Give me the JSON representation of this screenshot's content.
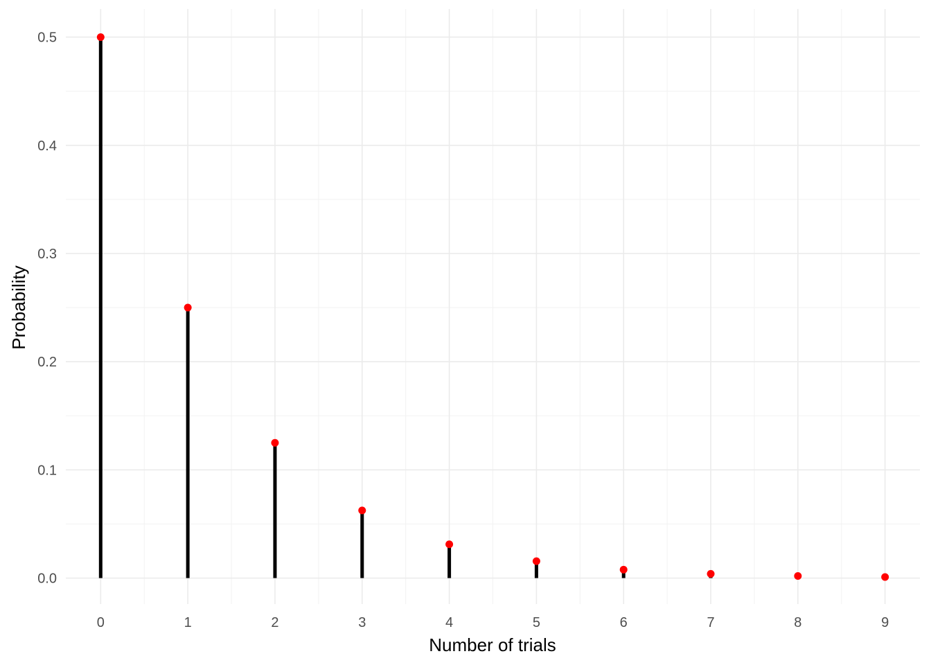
{
  "chart_data": {
    "type": "lollipop",
    "title": "",
    "xlabel": "Number of trials",
    "ylabel": "Probability",
    "x": [
      0,
      1,
      2,
      3,
      4,
      5,
      6,
      7,
      8,
      9
    ],
    "values": [
      0.5,
      0.25,
      0.125,
      0.0625,
      0.03125,
      0.015625,
      0.0078125,
      0.00390625,
      0.001953125,
      0.0009765625
    ],
    "x_ticks": [
      "0",
      "1",
      "2",
      "3",
      "4",
      "5",
      "6",
      "7",
      "8",
      "9"
    ],
    "y_ticks": [
      "0.0",
      "0.1",
      "0.2",
      "0.3",
      "0.4",
      "0.5"
    ],
    "y_tick_values": [
      0,
      0.1,
      0.2,
      0.3,
      0.4,
      0.5
    ],
    "xlim": [
      -0.4,
      9.4
    ],
    "ylim": [
      -0.024,
      0.526
    ],
    "grid": true,
    "legend": "none",
    "colors": {
      "stem": "#000000",
      "point": "#ff0000",
      "grid_major": "#ebebeb",
      "grid_minor": "#f2f2f2",
      "tick_text": "#4d4d4d"
    }
  }
}
